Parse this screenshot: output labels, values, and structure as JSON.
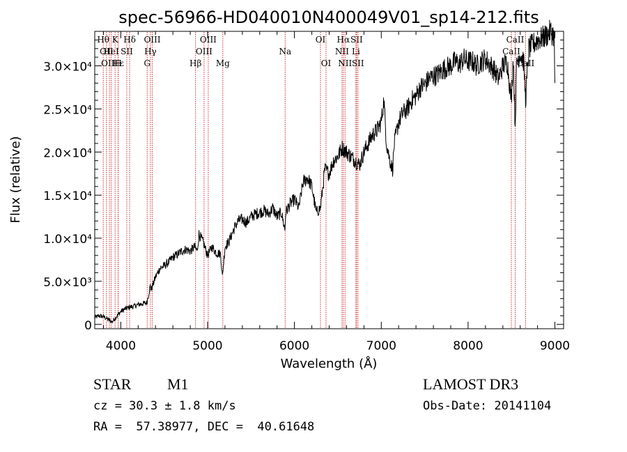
{
  "chart_data": {
    "type": "line",
    "title": "spec-56966-HD040010N400049V01_sp14-212.fits",
    "xlabel": "Wavelength (Å)",
    "ylabel": "Flux (relative)",
    "xlim": [
      3700,
      9100
    ],
    "ylim": [
      -500,
      34000
    ],
    "x_ticks": [
      4000,
      5000,
      6000,
      7000,
      8000,
      9000
    ],
    "y_ticks": [
      {
        "value": 0,
        "label": "0"
      },
      {
        "value": 5000,
        "label": "5.0×10³"
      },
      {
        "value": 10000,
        "label": "1.0×10⁴"
      },
      {
        "value": 15000,
        "label": "1.5×10⁴"
      },
      {
        "value": 20000,
        "label": "2.0×10⁴"
      },
      {
        "value": 25000,
        "label": "2.5×10⁴"
      },
      {
        "value": 30000,
        "label": "3.0×10⁴"
      }
    ],
    "series": [
      {
        "name": "Flux",
        "x": [
          3700,
          3750,
          3800,
          3850,
          3900,
          3950,
          4000,
          4050,
          4100,
          4150,
          4200,
          4250,
          4300,
          4340,
          4350,
          4400,
          4450,
          4500,
          4550,
          4600,
          4650,
          4700,
          4750,
          4800,
          4850,
          4880,
          4900,
          4950,
          5000,
          5050,
          5100,
          5150,
          5170,
          5200,
          5250,
          5300,
          5350,
          5400,
          5450,
          5500,
          5550,
          5600,
          5650,
          5700,
          5750,
          5800,
          5850,
          5890,
          5900,
          5950,
          6000,
          6050,
          6100,
          6150,
          6200,
          6250,
          6300,
          6350,
          6400,
          6450,
          6500,
          6550,
          6600,
          6650,
          6700,
          6750,
          6800,
          6850,
          6900,
          6950,
          7000,
          7030,
          7060,
          7100,
          7130,
          7150,
          7200,
          7250,
          7300,
          7350,
          7400,
          7450,
          7500,
          7550,
          7600,
          7650,
          7700,
          7750,
          7800,
          7850,
          7900,
          7950,
          8000,
          8050,
          8100,
          8150,
          8200,
          8250,
          8300,
          8350,
          8400,
          8450,
          8498,
          8520,
          8542,
          8560,
          8600,
          8640,
          8662,
          8700,
          8750,
          8800,
          8850,
          8900,
          8950,
          8990,
          9000
        ],
        "y": [
          800,
          1000,
          900,
          600,
          300,
          900,
          1500,
          1800,
          2000,
          2100,
          2300,
          2400,
          2500,
          4500,
          4000,
          5500,
          6500,
          6800,
          7200,
          7800,
          8100,
          8500,
          8700,
          8500,
          9000,
          8500,
          10500,
          9500,
          8000,
          9000,
          8300,
          8200,
          5500,
          9000,
          9700,
          11000,
          12000,
          12200,
          11800,
          12500,
          12800,
          13000,
          13200,
          12800,
          13500,
          12500,
          13000,
          11000,
          13000,
          14000,
          14500,
          13500,
          16500,
          17000,
          16000,
          13000,
          13500,
          18000,
          17500,
          19000,
          19500,
          20500,
          20000,
          19500,
          19000,
          18500,
          20000,
          21000,
          22000,
          22500,
          23500,
          26000,
          21000,
          19000,
          18000,
          21000,
          23500,
          24500,
          25000,
          26000,
          26500,
          27500,
          27800,
          28500,
          28800,
          29000,
          29500,
          29800,
          30000,
          30500,
          30200,
          30800,
          30500,
          30500,
          30000,
          30500,
          30800,
          30200,
          29500,
          28500,
          30000,
          30500,
          26000,
          31000,
          23000,
          30500,
          31500,
          30500,
          26000,
          32000,
          32500,
          33000,
          33200,
          33500,
          34000,
          33500,
          28000
        ]
      }
    ],
    "line_markers": [
      {
        "wl": 3798,
        "label": "Hθ",
        "row": 0
      },
      {
        "wl": 3835,
        "label": "OII",
        "row": 1
      },
      {
        "wl": 3869,
        "label": "OIII",
        "row": 2
      },
      {
        "wl": 3889,
        "label": "HeI",
        "row": 1
      },
      {
        "wl": 3934,
        "label": "K",
        "row": 0
      },
      {
        "wl": 3970,
        "label": "Hε",
        "row": 2
      },
      {
        "wl": 3969,
        "label": "H",
        "row": 2
      },
      {
        "wl": 4069,
        "label": "SII",
        "row": 1
      },
      {
        "wl": 4102,
        "label": "Hδ",
        "row": 0
      },
      {
        "wl": 4304,
        "label": "G",
        "row": 2
      },
      {
        "wl": 4341,
        "label": "Hγ",
        "row": 1
      },
      {
        "wl": 4363,
        "label": "OIII",
        "row": 0
      },
      {
        "wl": 4861,
        "label": "Hβ",
        "row": 2
      },
      {
        "wl": 4959,
        "label": "OIII",
        "row": 1
      },
      {
        "wl": 5007,
        "label": "OIII",
        "row": 0
      },
      {
        "wl": 5175,
        "label": "Mg",
        "row": 2
      },
      {
        "wl": 5893,
        "label": "Na",
        "row": 1
      },
      {
        "wl": 6300,
        "label": "OI",
        "row": 0
      },
      {
        "wl": 6364,
        "label": "OI",
        "row": 2
      },
      {
        "wl": 6548,
        "label": "NII",
        "row": 1
      },
      {
        "wl": 6563,
        "label": "Hα",
        "row": 0
      },
      {
        "wl": 6583,
        "label": "NII",
        "row": 2
      },
      {
        "wl": 6708,
        "label": "Li",
        "row": 1
      },
      {
        "wl": 6716,
        "label": "SII",
        "row": 0
      },
      {
        "wl": 6731,
        "label": "SII",
        "row": 2
      },
      {
        "wl": 8498,
        "label": "CaII",
        "row": 1
      },
      {
        "wl": 8542,
        "label": "CaII",
        "row": 0
      },
      {
        "wl": 8662,
        "label": "CaII",
        "row": 2
      }
    ]
  },
  "info": {
    "object_type": "STAR",
    "subclass": "M1",
    "survey": "LAMOST DR3",
    "cz": "cz = 30.3 ± 1.8 km/s",
    "obs_date": "Obs-Date: 20141104",
    "coords": "RA =  57.38977, DEC =  40.61648"
  }
}
